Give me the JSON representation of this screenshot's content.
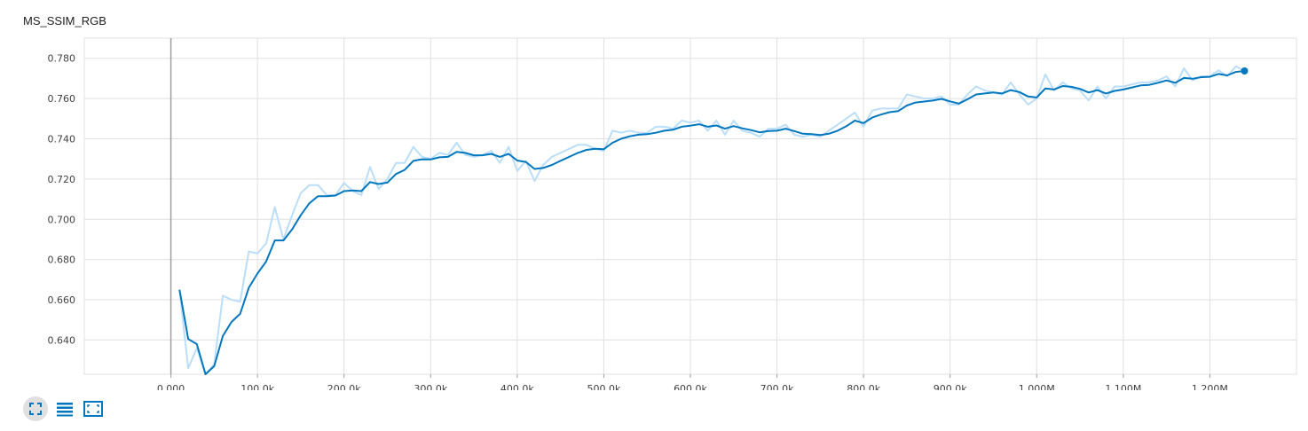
{
  "colors": {
    "line": "#0277bd",
    "line_raw": "#bbdefb",
    "grid": "#e0e0e0",
    "axis": "#9e9e9e",
    "icon": "#0277bd"
  },
  "toolbar": {
    "icons": [
      "fit-domain-icon",
      "toggle-log-scale-icon",
      "expand-chart-icon"
    ]
  },
  "chart_data": {
    "type": "line",
    "title": "MS_SSIM_RGB",
    "xlabel": "",
    "ylabel": "",
    "xlim": [
      -100000,
      1300000
    ],
    "ylim": [
      0.623,
      0.79
    ],
    "x_ticks": [
      0,
      100000,
      200000,
      300000,
      400000,
      500000,
      600000,
      700000,
      800000,
      900000,
      1000000,
      1100000,
      1200000
    ],
    "x_tick_labels": [
      "0.000",
      "100.0k",
      "200.0k",
      "300.0k",
      "400.0k",
      "500.0k",
      "600.0k",
      "700.0k",
      "800.0k",
      "900.0k",
      "1.000M",
      "1.100M",
      "1.200M"
    ],
    "y_ticks": [
      0.64,
      0.66,
      0.68,
      0.7,
      0.72,
      0.74,
      0.76,
      0.78
    ],
    "y_tick_labels": [
      "0.640",
      "0.660",
      "0.680",
      "0.700",
      "0.720",
      "0.740",
      "0.760",
      "0.780"
    ],
    "grid": true,
    "legend": "none",
    "x_step": 10000,
    "x_start": 10000,
    "smoothed": [
      0.665,
      0.6405,
      0.638,
      0.623,
      0.627,
      0.642,
      0.649,
      0.653,
      0.666,
      0.673,
      0.679,
      0.6895,
      0.6895,
      0.695,
      0.702,
      0.708,
      0.7115,
      0.7115,
      0.7118,
      0.714,
      0.7143,
      0.714,
      0.7185,
      0.7175,
      0.7182,
      0.7225,
      0.7245,
      0.729,
      0.7298,
      0.7297,
      0.7308,
      0.731,
      0.7335,
      0.733,
      0.7318,
      0.7318,
      0.7325,
      0.731,
      0.7325,
      0.7292,
      0.7285,
      0.725,
      0.7255,
      0.727,
      0.729,
      0.731,
      0.733,
      0.7345,
      0.735,
      0.7348,
      0.738,
      0.74,
      0.7412,
      0.742,
      0.7423,
      0.743,
      0.744,
      0.7445,
      0.746,
      0.7465,
      0.7472,
      0.746,
      0.7466,
      0.745,
      0.7463,
      0.7452,
      0.7443,
      0.7432,
      0.7438,
      0.744,
      0.745,
      0.7438,
      0.7425,
      0.7423,
      0.7419,
      0.7425,
      0.744,
      0.7462,
      0.749,
      0.7478,
      0.7505,
      0.752,
      0.7532,
      0.7538,
      0.7565,
      0.758,
      0.7585,
      0.759,
      0.7598,
      0.7586,
      0.7575,
      0.7596,
      0.762,
      0.7625,
      0.763,
      0.7625,
      0.7642,
      0.7632,
      0.761,
      0.7605,
      0.765,
      0.7645,
      0.7662,
      0.7658,
      0.7648,
      0.763,
      0.7642,
      0.7625,
      0.7638,
      0.7645,
      0.7655,
      0.7665,
      0.7668,
      0.7678,
      0.769,
      0.7678,
      0.7702,
      0.7698,
      0.7706,
      0.7708,
      0.7722,
      0.7715,
      0.7732,
      0.7737
    ],
    "raw": [
      0.665,
      0.626,
      0.636,
      0.618,
      0.628,
      0.662,
      0.66,
      0.659,
      0.684,
      0.683,
      0.688,
      0.706,
      0.69,
      0.702,
      0.713,
      0.717,
      0.717,
      0.712,
      0.712,
      0.718,
      0.714,
      0.712,
      0.726,
      0.715,
      0.72,
      0.728,
      0.728,
      0.736,
      0.731,
      0.73,
      0.733,
      0.732,
      0.738,
      0.732,
      0.731,
      0.732,
      0.734,
      0.728,
      0.736,
      0.724,
      0.729,
      0.719,
      0.727,
      0.731,
      0.733,
      0.735,
      0.737,
      0.737,
      0.735,
      0.734,
      0.744,
      0.743,
      0.744,
      0.743,
      0.743,
      0.746,
      0.746,
      0.745,
      0.749,
      0.748,
      0.749,
      0.744,
      0.749,
      0.742,
      0.749,
      0.744,
      0.743,
      0.741,
      0.745,
      0.745,
      0.747,
      0.742,
      0.741,
      0.742,
      0.741,
      0.744,
      0.747,
      0.75,
      0.753,
      0.746,
      0.754,
      0.755,
      0.755,
      0.755,
      0.762,
      0.761,
      0.76,
      0.76,
      0.761,
      0.757,
      0.757,
      0.762,
      0.766,
      0.764,
      0.763,
      0.762,
      0.768,
      0.762,
      0.757,
      0.76,
      0.772,
      0.764,
      0.768,
      0.765,
      0.764,
      0.759,
      0.766,
      0.76,
      0.766,
      0.766,
      0.767,
      0.768,
      0.768,
      0.769,
      0.771,
      0.766,
      0.775,
      0.769,
      0.771,
      0.771,
      0.774,
      0.771,
      0.776,
      0.7737
    ]
  }
}
